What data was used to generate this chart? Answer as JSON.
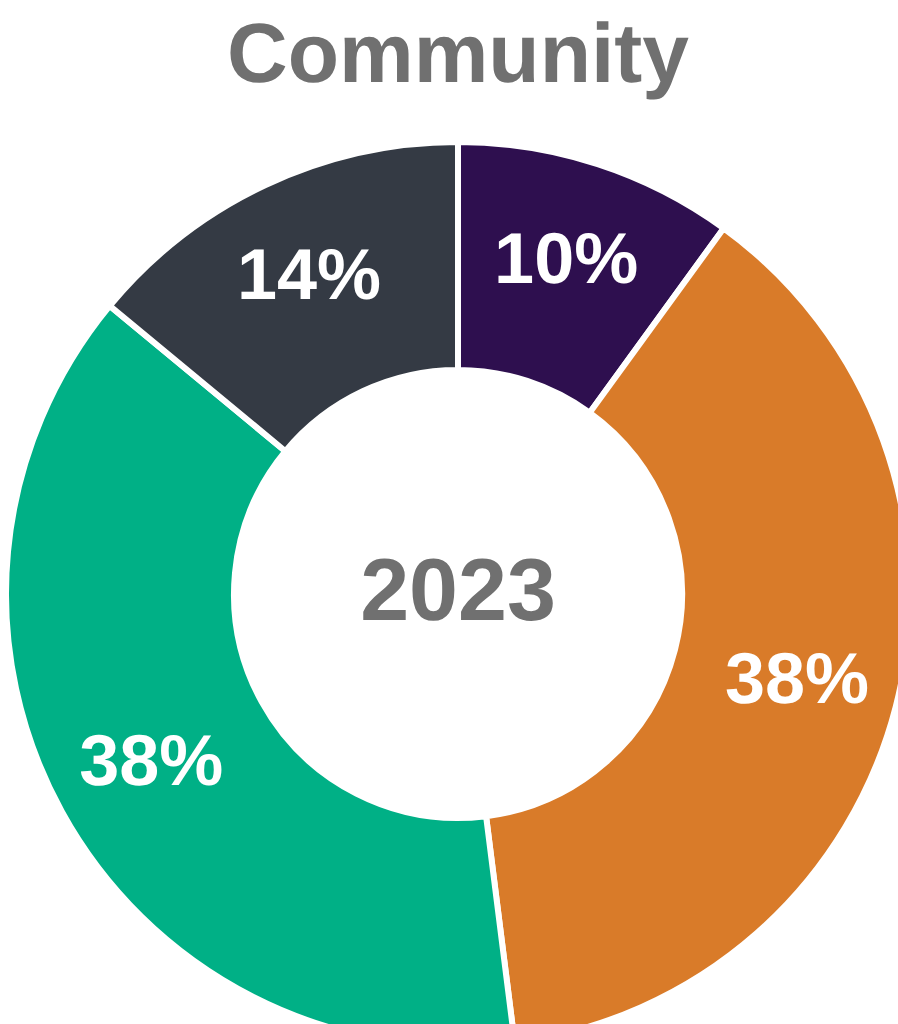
{
  "chart_data": {
    "type": "donut",
    "title": "Community",
    "categories": [
      null,
      null,
      null,
      null
    ],
    "values": [
      10,
      38,
      38,
      14
    ],
    "colors": [
      "#2e0f4f",
      "#d97b29",
      "#00b086",
      "#343a44"
    ],
    "value_labels": [
      "10%",
      "38%",
      "38%",
      "14%"
    ],
    "annotations": [
      "2023"
    ]
  }
}
